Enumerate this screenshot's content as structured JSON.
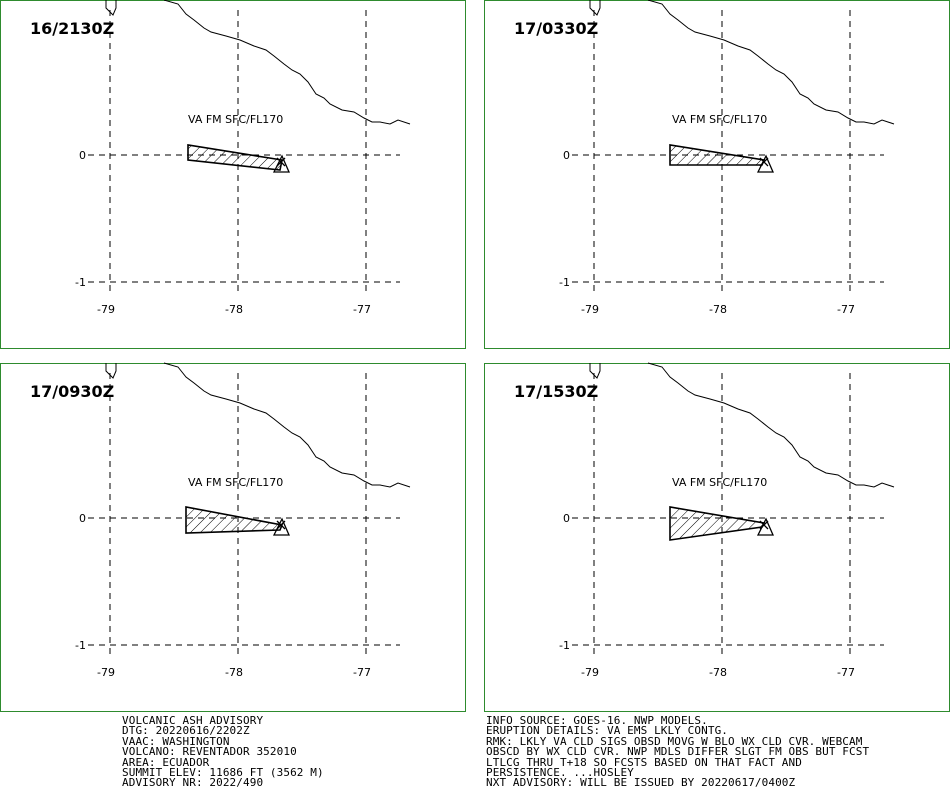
{
  "panels": [
    {
      "time": "16/2130Z",
      "label": "VA FM SFC/FL170"
    },
    {
      "time": "17/0330Z",
      "label": "VA FM SFC/FL170"
    },
    {
      "time": "17/0930Z",
      "label": "VA FM SFC/FL170"
    },
    {
      "time": "17/1530Z",
      "label": "VA FM SFC/FL170"
    }
  ],
  "axis": {
    "lat_ticks": [
      "0",
      "-1"
    ],
    "lon_ticks": [
      "-79",
      "-78",
      "-77"
    ]
  },
  "advisory_left": [
    "VOLCANIC ASH ADVISORY",
    "DTG: 20220616/2202Z",
    "VAAC: WASHINGTON",
    "VOLCANO: REVENTADOR 352010",
    "AREA: ECUADOR",
    "SUMMIT ELEV: 11686 FT (3562 M)",
    "ADVISORY NR: 2022/490"
  ],
  "advisory_right": [
    "INFO SOURCE: GOES-16. NWP MODELS.",
    "ERUPTION DETAILS: VA EMS LKLY CONTG.",
    "RMK: LKLY VA CLD SIGS OBSD MOVG W BLO WX CLD CVR. WEBCAM",
    "OBSCD BY WX CLD CVR. NWP MDLS DIFFER SLGT FM OBS BUT FCST",
    "LTLCG THRU T+18 SO FCSTS BASED ON THAT FACT AND",
    "PERSISTENCE. ...HOSLEY",
    "NXT ADVISORY: WILL BE ISSUED BY 20220617/0400Z"
  ],
  "colors": {
    "frame": "#2e8b2e",
    "ink": "#000000"
  }
}
